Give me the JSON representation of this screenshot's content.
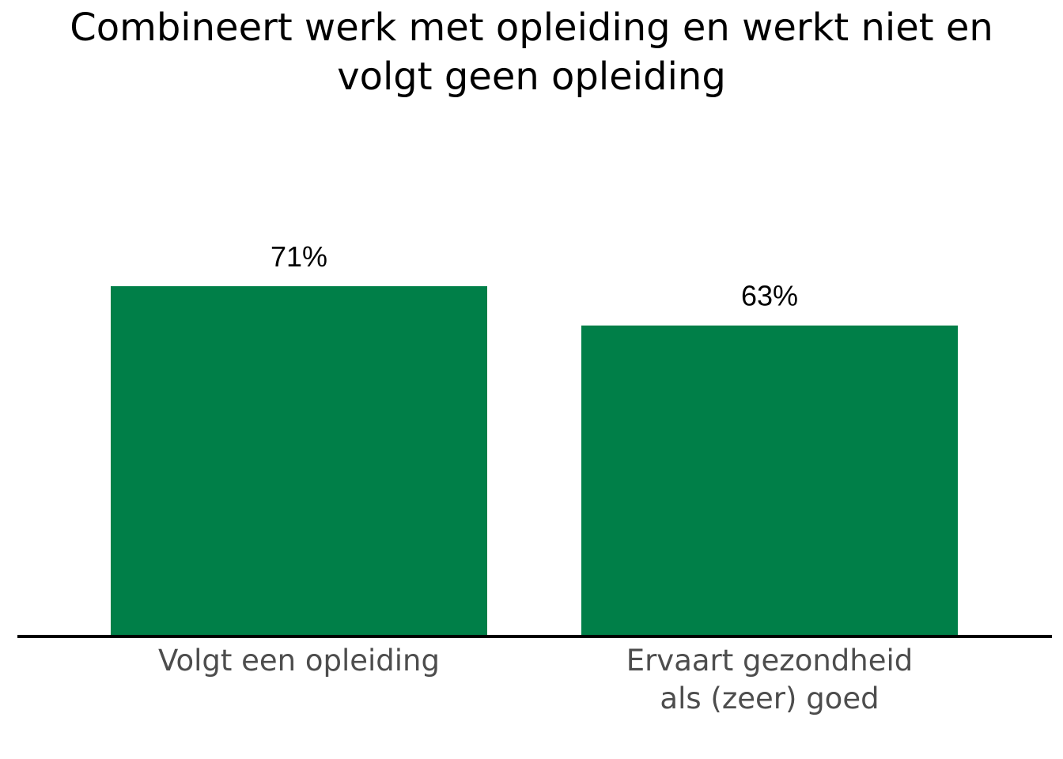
{
  "chart_data": {
    "type": "bar",
    "title_lines": [
      "Combineert werk met opleiding en werkt niet en",
      "volgt geen opleiding"
    ],
    "categories": [
      [
        "Volgt een opleiding"
      ],
      [
        "Ervaart gezondheid",
        "als (zeer) goed"
      ]
    ],
    "values": [
      71,
      63
    ],
    "value_labels": [
      "71%",
      "63%"
    ],
    "ylim": [
      0,
      71
    ],
    "grid": false,
    "legend": "none",
    "colors": {
      "bar": "#007f48",
      "axis": "#000000",
      "category_text": "#4d4d4d"
    }
  }
}
